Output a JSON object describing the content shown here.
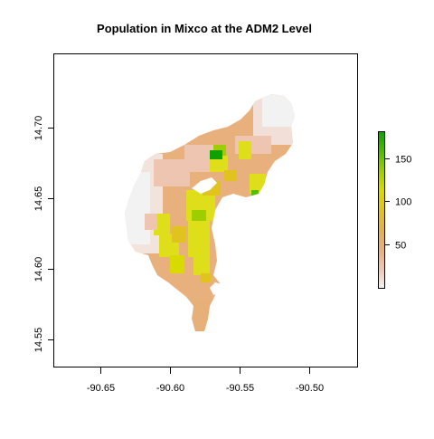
{
  "map": {
    "title": "Population in Mixco at the ADM2 Level",
    "x_axis": {
      "min": -90.683,
      "max": -90.465,
      "ticks": [
        -90.65,
        -90.6,
        -90.55,
        -90.5
      ],
      "tick_labels": [
        "-90.65",
        "-90.60",
        "-90.55",
        "-90.50"
      ]
    },
    "y_axis": {
      "min": 14.53,
      "max": 14.752,
      "ticks": [
        14.55,
        14.6,
        14.65,
        14.7
      ],
      "tick_labels": [
        "14.55",
        "14.60",
        "14.65",
        "14.70"
      ]
    },
    "legend": {
      "min": 0,
      "max": 180,
      "ticks": [
        50,
        100,
        150
      ],
      "tick_labels": [
        "50",
        "100",
        "150"
      ],
      "colors": [
        "#f2f2f2",
        "#edc5b0",
        "#e8b07c",
        "#e6b04a",
        "#e2c21e",
        "#d8da00",
        "#9fce00",
        "#4fba00",
        "#0ea100"
      ]
    }
  },
  "colors": {
    "background": "#ffffff",
    "frame": "#000000",
    "lightest": "#f2f2f2",
    "low": "#edc5b0",
    "mid": "#e6b078",
    "yellow": "#dede1a",
    "green": "#52c000",
    "dark_green": "#0ea100"
  }
}
